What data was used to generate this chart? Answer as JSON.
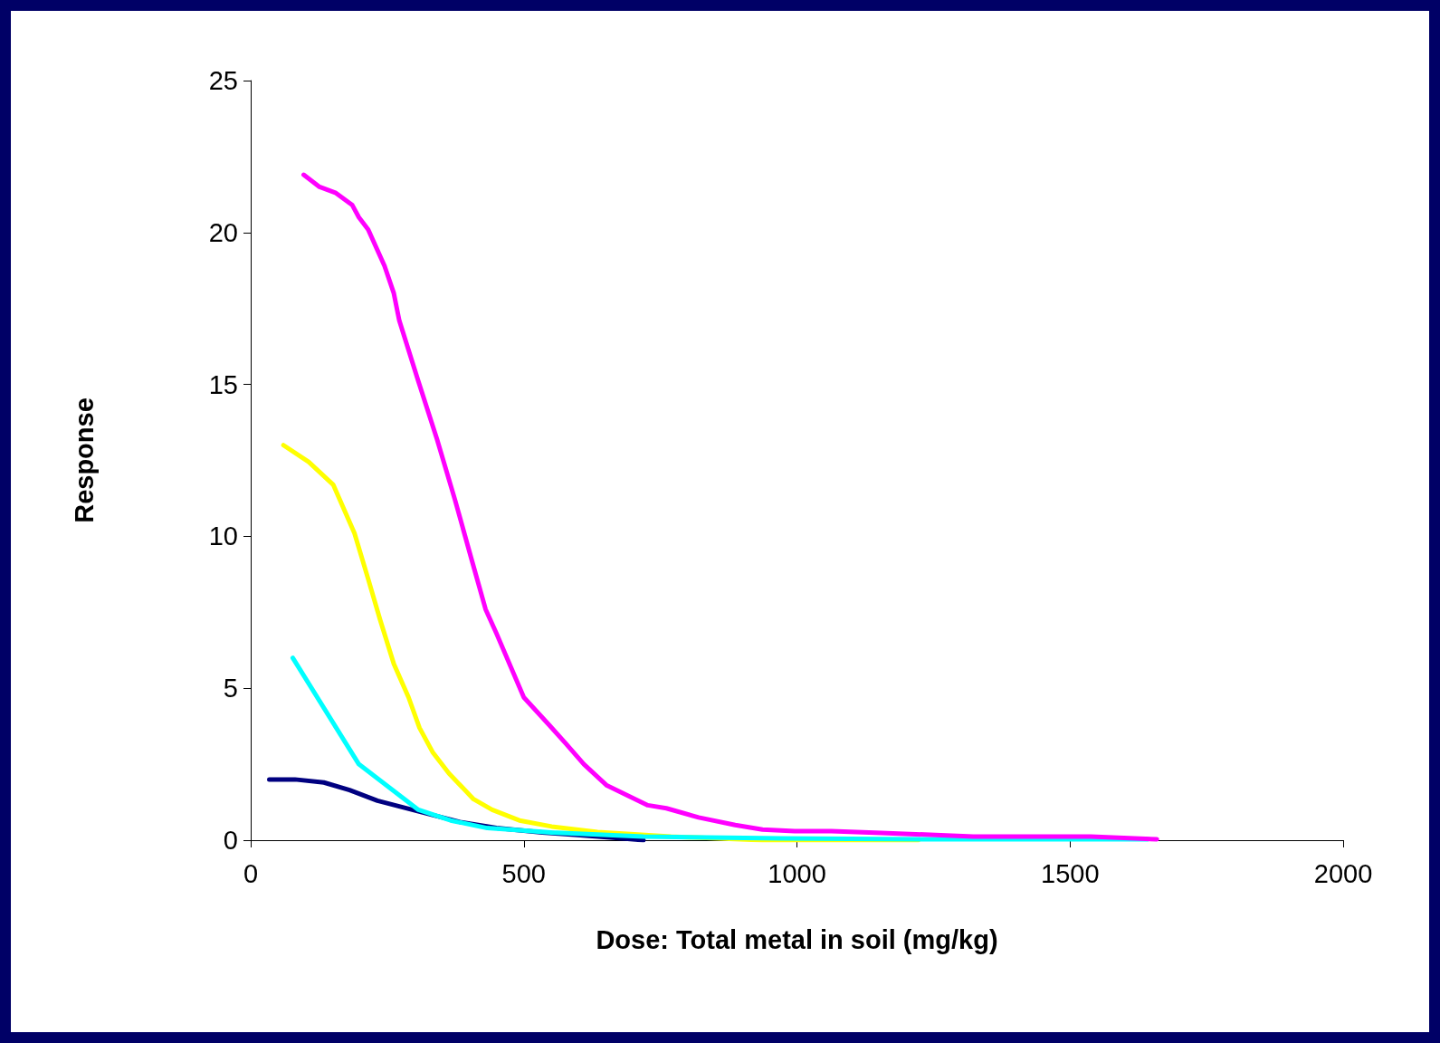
{
  "chart_data": {
    "type": "line",
    "xlabel": "Dose: Total metal in soil (mg/kg)",
    "ylabel": "Response",
    "xlim": [
      0,
      2000
    ],
    "xticks": [
      0,
      500,
      1000,
      1500,
      2000
    ],
    "ylim": [
      0,
      25
    ],
    "yticks": [
      0,
      5,
      10,
      15,
      20,
      25
    ],
    "grid": false,
    "marker": "none",
    "line_style": "solid",
    "series": [
      {
        "color": "#000080",
        "x": [
          34,
          81,
          134,
          181,
          232,
          307,
          383,
          450,
          534,
          593,
          685,
          719
        ],
        "values": [
          2.0,
          2.0,
          1.9,
          1.65,
          1.3,
          0.95,
          0.6,
          0.4,
          0.25,
          0.18,
          0.05,
          0
        ]
      },
      {
        "color": "#ffff00",
        "x": [
          60,
          106,
          151,
          190,
          215,
          237,
          262,
          289,
          309,
          333,
          363,
          408,
          442,
          492,
          551,
          635,
          769,
          937,
          1222
        ],
        "values": [
          13.0,
          12.45,
          11.7,
          10.1,
          8.6,
          7.25,
          5.8,
          4.7,
          3.7,
          2.9,
          2.2,
          1.35,
          1.0,
          0.65,
          0.45,
          0.27,
          0.12,
          0,
          0
        ]
      },
      {
        "color": "#00ffff",
        "x": [
          77,
          198,
          307,
          366,
          433,
          551,
          719,
          971,
          1222,
          1642
        ],
        "values": [
          6.0,
          2.5,
          1.0,
          0.65,
          0.4,
          0.25,
          0.12,
          0.06,
          0.03,
          0.03
        ]
      },
      {
        "color": "#ff00ff",
        "x": [
          97,
          126,
          156,
          186,
          198,
          215,
          245,
          262,
          272,
          307,
          341,
          374,
          405,
          430,
          450,
          500,
          546,
          576,
          610,
          652,
          727,
          761,
          820,
          887,
          937,
          996,
          1063,
          1155,
          1323,
          1538,
          1659
        ],
        "values": [
          21.9,
          21.5,
          21.3,
          20.9,
          20.5,
          20.1,
          18.9,
          18.0,
          17.1,
          15.1,
          13.2,
          11.2,
          9.2,
          7.6,
          6.8,
          4.7,
          3.8,
          3.2,
          2.5,
          1.8,
          1.15,
          1.05,
          0.75,
          0.5,
          0.35,
          0.3,
          0.3,
          0.24,
          0.12,
          0.12,
          0.03
        ]
      }
    ]
  }
}
